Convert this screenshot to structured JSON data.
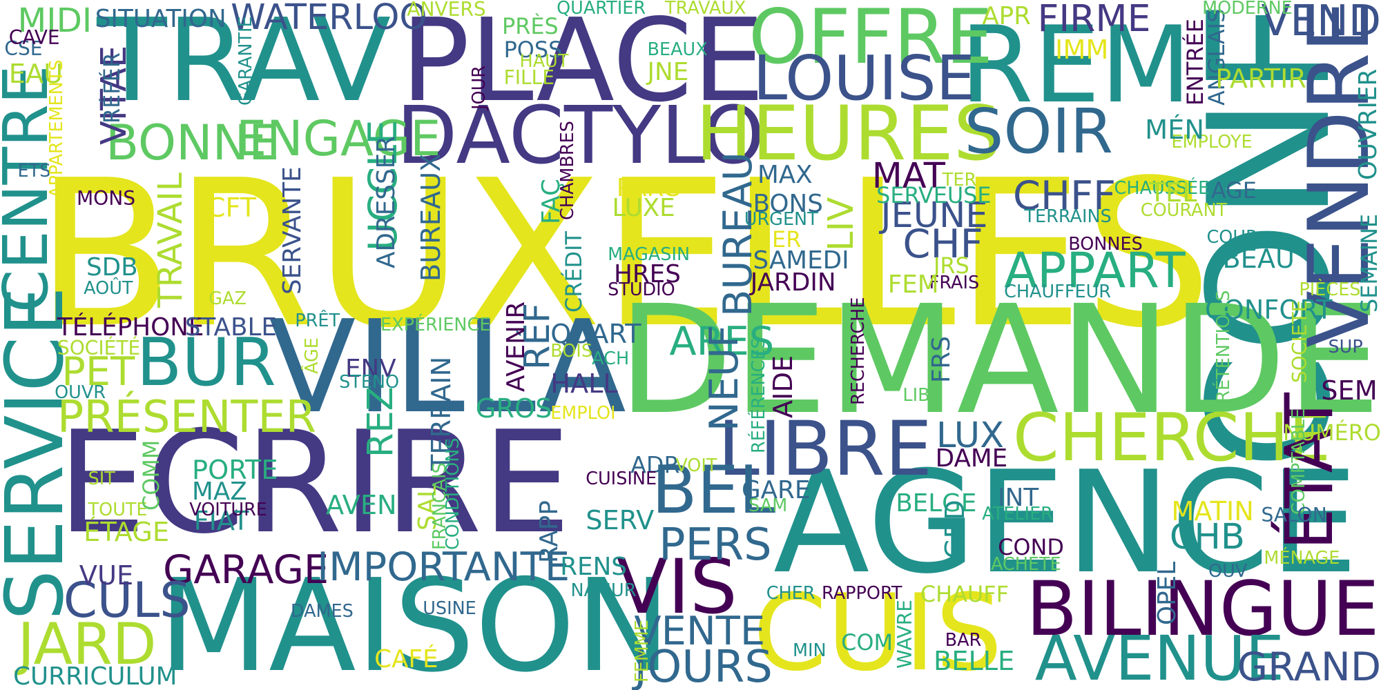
{
  "colors": {
    "background": "#ffffff",
    "yellow": "#e4e51d",
    "lime": "#addc30",
    "green": "#5ec962",
    "lightgreen": "#7ad151",
    "teal": "#21918c",
    "tealgreen": "#28ae80",
    "blue": "#3b528b",
    "steel": "#31688e",
    "indigo": "#443983",
    "purple": "#440154"
  },
  "words": [
    "BRUXELLES",
    "CONF",
    "DEMANDE",
    "AGENCE",
    "ECRIRE",
    "VILLA",
    "MAISON",
    "TRAV",
    "PLACE",
    "REM",
    "DACTYLO",
    "CUIS",
    "OFFRE",
    "HEURES",
    "LOUISE",
    "SOIR",
    "VENDRE",
    "BILINGUE",
    "CHERCHE",
    "LIBRE",
    "VIS",
    "AVENUE",
    "SERVICE",
    "CENTRE",
    "BUR",
    "BEL",
    "ÉTAT",
    "PRÉSENTER",
    "GARAGE",
    "IMPORTANTE",
    "JARD",
    "CULS",
    "BONNE",
    "ENGAGE",
    "APPART",
    "PERS",
    "VENTE",
    "JOURS",
    "GRAND",
    "MIDI",
    "WATERLOO",
    "FIRME",
    "VEND",
    "ARES",
    "NEUF",
    "UCCLE",
    "BUREAU",
    "CHFF",
    "CHF",
    "JEUNE",
    "MAT",
    "REZ",
    "LUX",
    "RÉF",
    "VITAE",
    "TÉLÉPHONE",
    "STABLE",
    "PET",
    "SITUATION",
    "CENTRE",
    "TRAVAIL",
    "SERVANTE",
    "ADRESSER",
    "BUREAUX",
    "AVENIR",
    "TERRAIN",
    "SAL",
    "CONDITIONS",
    "FRANÇAIS",
    "DAME",
    "ADR",
    "GARE",
    "RAPP",
    "SERV",
    "RENS",
    "INT",
    "BELGE",
    "COND",
    "GRD",
    "CHB",
    "MATIN",
    "MAZ",
    "FIAT",
    "AVEN",
    "PORTE",
    "VUE",
    "ÉTAGE",
    "TOUTE",
    "VOITURE",
    "COMM",
    "SIT",
    "QUART",
    "HALL",
    "GROS",
    "EMPLOI",
    "BOIS",
    "ACH",
    "ENV",
    "STENO",
    "ÂGE",
    "PRÊT",
    "EXPÉRIENCE",
    "SOCIÉTÉ",
    "OUVR",
    "SDB",
    "AOÛT",
    "GAZ",
    "MONS",
    "ETS",
    "CFT",
    "EAU",
    "CSE",
    "CAVE",
    "APPARTEMENTS",
    "RÉFÉR",
    "GARANTIE",
    "JOUR",
    "ANVERS",
    "PRÈS",
    "POSS",
    "FILLE",
    "HAUT",
    "BEAUX",
    "JNE",
    "QUARTIER",
    "TRAVAUX",
    "IMM",
    "APR",
    "ENTRÉE",
    "ANGLAIS",
    "MODERNE",
    "PARTIR",
    "EMPLOYE",
    "MÉN",
    "CHAUSSÉE",
    "OUVRIER",
    "TER",
    "TEL",
    "COURANT",
    "AGE",
    "TERRAINS",
    "SERVEUSE",
    "BONS",
    "MAX",
    "URGENT",
    "MER",
    "SAMEDI",
    "JARDIN",
    "LIV",
    "PARC",
    "LUXE",
    "FAÇ",
    "CHAMBRES",
    "CRÉDIT",
    "MAGASIN",
    "HRES",
    "STUDIO",
    "JRS",
    "FRAIS",
    "FEM",
    "CHAUFFEUR",
    "BONNES",
    "COUR",
    "BEAU",
    "CONFORT",
    "PIÈCES",
    "SEMAINE",
    "SUP",
    "SOCIETE",
    "PRÉTENTIONS",
    "SEM",
    "NUMÉRO",
    "COMPTABLE",
    "SALON",
    "MÉNAGE",
    "OUV",
    "OPEL",
    "ACHÈTE",
    "ATELIER",
    "CHAUFF",
    "CHER",
    "RAPPORT",
    "SAM",
    "VOIT",
    "CUISINE",
    "AIDE",
    "RÉFÉRENCES",
    "RECHERCHE",
    "FRS",
    "LIB",
    "BAR",
    "BELLE",
    "COM",
    "MIN",
    "WAVRE",
    "FEMME",
    "CAFÉ",
    "USINE",
    "DAMES",
    "NAMUR",
    "CURRICULUM"
  ]
}
